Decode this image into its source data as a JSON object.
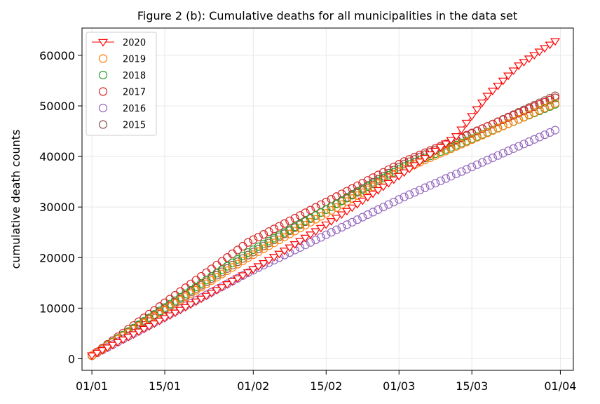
{
  "chart_data": {
    "type": "scatter",
    "title": "Figure 2 (b): Cumulative deaths for all municipalities in the data set",
    "xlabel": "",
    "ylabel": "cumulative death counts",
    "x_ticks": [
      "01/01",
      "15/01",
      "01/02",
      "15/02",
      "01/03",
      "15/03",
      "01/04"
    ],
    "y_ticks": [
      "0",
      "10000",
      "20000",
      "30000",
      "40000",
      "50000",
      "60000"
    ],
    "x_range_days": [
      -1.9,
      92.5
    ],
    "y_range": [
      -2300,
      65400
    ],
    "grid": true,
    "legend_position": "top-left",
    "series": [
      {
        "name": "2020",
        "marker": "triangle-down",
        "connected": true,
        "color": "#ff0000",
        "points": [
          [
            0,
            650
          ],
          [
            70,
            44000
          ],
          [
            76,
            52000
          ],
          [
            82,
            58000
          ],
          [
            89,
            62800
          ]
        ],
        "rate_before_day_70": 620
      },
      {
        "name": "2019",
        "marker": "circle",
        "color": "#ff7f0e",
        "points": [
          [
            0,
            600
          ],
          [
            30,
            20000
          ],
          [
            60,
            37500
          ],
          [
            89,
            50500
          ]
        ]
      },
      {
        "name": "2018",
        "marker": "circle",
        "color": "#2ca02c",
        "points": [
          [
            0,
            600
          ],
          [
            30,
            21000
          ],
          [
            60,
            38000
          ],
          [
            89,
            50300
          ]
        ]
      },
      {
        "name": "2017",
        "marker": "circle",
        "color": "#d62728",
        "points": [
          [
            0,
            600
          ],
          [
            30,
            23000
          ],
          [
            60,
            39000
          ],
          [
            89,
            51600
          ]
        ]
      },
      {
        "name": "2016",
        "marker": "circle",
        "color": "#9467bd",
        "points": [
          [
            0,
            600
          ],
          [
            30,
            17000
          ],
          [
            60,
            32000
          ],
          [
            89,
            45200
          ]
        ]
      },
      {
        "name": "2015",
        "marker": "circle",
        "color": "#8c564b",
        "points": [
          [
            0,
            600
          ],
          [
            30,
            20500
          ],
          [
            60,
            38500
          ],
          [
            89,
            52000
          ]
        ]
      }
    ]
  }
}
